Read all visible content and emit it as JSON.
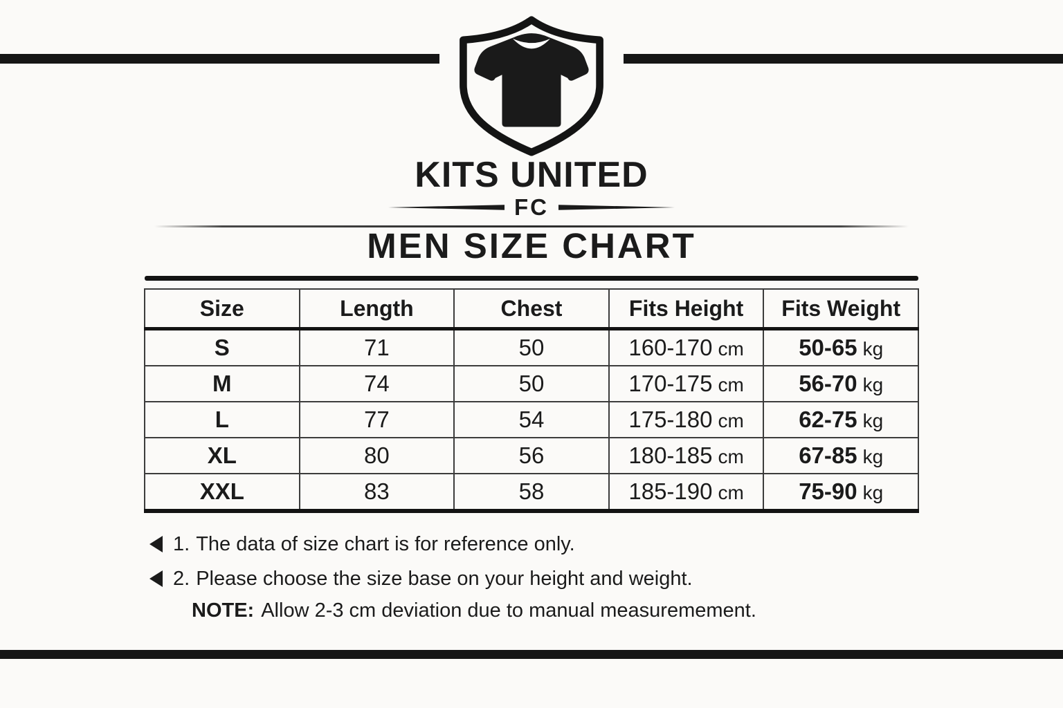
{
  "colors": {
    "background": "#fbfaf8",
    "ink": "#1b1b1b",
    "bar_black": "#161616"
  },
  "brand": {
    "logo_icon": "shield-tshirt-icon",
    "name": "KITS UNITED",
    "sub": "FC"
  },
  "title": "MEN SIZE CHART",
  "table": {
    "headers": [
      "Size",
      "Length",
      "Chest",
      "Fits Height",
      "Fits Weight"
    ],
    "rows": [
      {
        "size": "S",
        "length": "71",
        "chest": "50",
        "fits_height": "160-170",
        "fits_height_unit": "cm",
        "fits_weight": "50-65",
        "fits_weight_unit": "kg"
      },
      {
        "size": "M",
        "length": "74",
        "chest": "50",
        "fits_height": "170-175",
        "fits_height_unit": "cm",
        "fits_weight": "56-70",
        "fits_weight_unit": "kg"
      },
      {
        "size": "L",
        "length": "77",
        "chest": "54",
        "fits_height": "175-180",
        "fits_height_unit": "cm",
        "fits_weight": "62-75",
        "fits_weight_unit": "kg"
      },
      {
        "size": "XL",
        "length": "80",
        "chest": "56",
        "fits_height": "180-185",
        "fits_height_unit": "cm",
        "fits_weight": "67-85",
        "fits_weight_unit": "kg"
      },
      {
        "size": "XXL",
        "length": "83",
        "chest": "58",
        "fits_height": "185-190",
        "fits_height_unit": "cm",
        "fits_weight": "75-90",
        "fits_weight_unit": "kg"
      }
    ]
  },
  "notes": [
    {
      "bullet_icon": "left-triangle-bullet-icon",
      "number": "1.",
      "text": "The data of size chart is for reference only."
    },
    {
      "bullet_icon": "left-triangle-bullet-icon",
      "number": "2.",
      "text": "Please choose the size base on your height and weight."
    }
  ],
  "note_footer": {
    "label": "NOTE:",
    "text": "Allow 2-3 cm deviation due to manual measuremement."
  }
}
